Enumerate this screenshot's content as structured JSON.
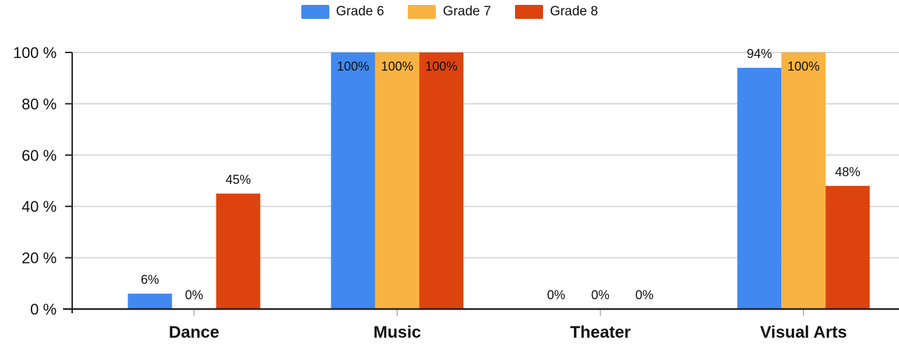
{
  "chart_data": {
    "type": "bar",
    "categories": [
      "Dance",
      "Music",
      "Theater",
      "Visual Arts"
    ],
    "series": [
      {
        "name": "Grade 6",
        "color": "#4189F0",
        "values": [
          6,
          100,
          0,
          94
        ],
        "labels": [
          "6%",
          "100%",
          "0%",
          "94%"
        ]
      },
      {
        "name": "Grade 7",
        "color": "#F9B342",
        "values": [
          0,
          100,
          0,
          100
        ],
        "labels": [
          "0%",
          "100%",
          "0%",
          "100%"
        ]
      },
      {
        "name": "Grade 8",
        "color": "#DD430E",
        "values": [
          45,
          100,
          0,
          48
        ],
        "labels": [
          "45%",
          "100%",
          "0%",
          "48%"
        ]
      }
    ],
    "ylim": [
      0,
      100
    ],
    "yticks": [
      0,
      20,
      40,
      60,
      80,
      100
    ],
    "ytick_labels": [
      "0 %",
      "20 %",
      "40 %",
      "60 %",
      "80 %",
      "100 %"
    ],
    "grid": true,
    "legend_position": "top"
  }
}
